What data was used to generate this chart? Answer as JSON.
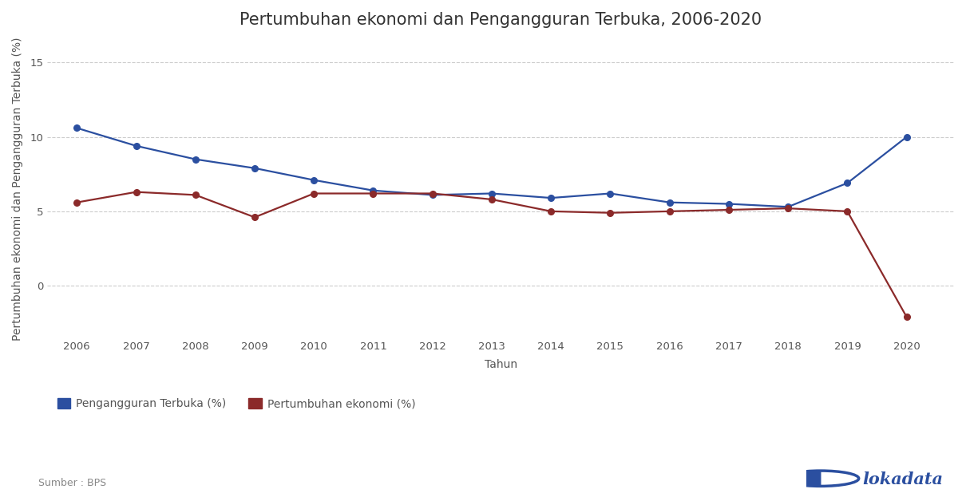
{
  "title": "Pertumbuhan ekonomi dan Pengangguran Terbuka, 2006-2020",
  "xlabel": "Tahun",
  "ylabel": "Pertumbuhan ekonomi dan Pengangguran Terbuka (%)",
  "years": [
    2006,
    2007,
    2008,
    2009,
    2010,
    2011,
    2012,
    2013,
    2014,
    2015,
    2016,
    2017,
    2018,
    2019,
    2020
  ],
  "pengangguran": [
    10.6,
    9.4,
    8.5,
    7.9,
    7.1,
    6.4,
    6.1,
    6.2,
    5.9,
    6.2,
    5.6,
    5.5,
    5.3,
    6.9,
    10.0
  ],
  "pertumbuhan": [
    5.6,
    6.3,
    6.1,
    4.6,
    6.2,
    6.2,
    6.2,
    5.8,
    5.0,
    4.9,
    5.0,
    5.1,
    5.2,
    5.0,
    -2.1
  ],
  "pengangguran_color": "#2B4FA0",
  "pertumbuhan_color": "#8B2A2A",
  "grid_color": "#cccccc",
  "background_color": "#ffffff",
  "yticks": [
    0,
    5,
    10,
    15
  ],
  "ylim": [
    -3.5,
    16.5
  ],
  "xlim_left": 2005.5,
  "xlim_right": 2020.8,
  "legend_pengangguran": "Pengangguran Terbuka (%)",
  "legend_pertumbuhan": "Pertumbuhan ekonomi (%)",
  "source_text": "Sumber : BPS",
  "brand_text": "lokadata",
  "title_fontsize": 15,
  "axis_label_fontsize": 10,
  "tick_fontsize": 9.5,
  "legend_fontsize": 10,
  "source_fontsize": 9,
  "brand_fontsize": 15
}
